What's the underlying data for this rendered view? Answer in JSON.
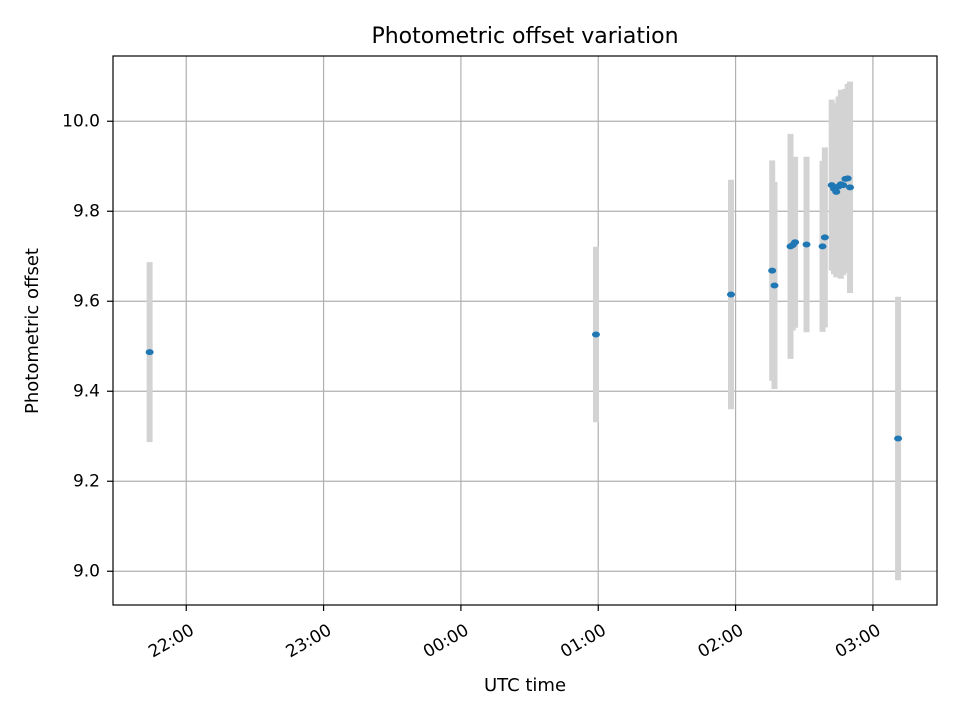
{
  "chart_data": {
    "type": "scatter",
    "title": "Photometric offset variation",
    "xlabel": "UTC time",
    "ylabel": "Photometric offset",
    "x_tick_labels": [
      "22:00",
      "23:00",
      "00:00",
      "01:00",
      "02:00",
      "03:00"
    ],
    "y_tick_labels": [
      "9.0",
      "9.2",
      "9.4",
      "9.6",
      "9.8",
      "10.0"
    ],
    "x_ticks": [
      "22:00",
      "23:00",
      "00:00",
      "01:00",
      "02:00",
      "03:00"
    ],
    "y_ticks": [
      9.0,
      9.2,
      9.4,
      9.6,
      9.8,
      10.0
    ],
    "xlim": [
      "21:28",
      "03:28"
    ],
    "ylim": [
      8.925,
      10.145
    ],
    "grid": true,
    "colors": {
      "points": "#1f77b4",
      "errorbars": "#d3d3d3",
      "grid": "#b0b0b0"
    },
    "points": [
      {
        "time": "21:44",
        "y": 9.487,
        "yerr": 0.2
      },
      {
        "time": "00:59",
        "y": 9.526,
        "yerr": 0.195
      },
      {
        "time": "01:58",
        "y": 9.615,
        "yerr": 0.255
      },
      {
        "time": "02:16",
        "y": 9.668,
        "yerr": 0.245
      },
      {
        "time": "02:17",
        "y": 9.635,
        "yerr": 0.23
      },
      {
        "time": "02:24",
        "y": 9.722,
        "yerr": 0.25
      },
      {
        "time": "02:25",
        "y": 9.725,
        "yerr": 0.19
      },
      {
        "time": "02:26",
        "y": 9.731,
        "yerr": 0.19
      },
      {
        "time": "02:31",
        "y": 9.726,
        "yerr": 0.195
      },
      {
        "time": "02:38",
        "y": 9.722,
        "yerr": 0.19
      },
      {
        "time": "02:39",
        "y": 9.742,
        "yerr": 0.2
      },
      {
        "time": "02:42",
        "y": 9.858,
        "yerr": 0.19
      },
      {
        "time": "02:43",
        "y": 9.85,
        "yerr": 0.19
      },
      {
        "time": "02:44",
        "y": 9.843,
        "yerr": 0.19
      },
      {
        "time": "02:45",
        "y": 9.855,
        "yerr": 0.2
      },
      {
        "time": "02:46",
        "y": 9.86,
        "yerr": 0.21
      },
      {
        "time": "02:47",
        "y": 9.858,
        "yerr": 0.2
      },
      {
        "time": "02:48",
        "y": 9.872,
        "yerr": 0.2
      },
      {
        "time": "02:49",
        "y": 9.873,
        "yerr": 0.21
      },
      {
        "time": "02:50",
        "y": 9.853,
        "yerr": 0.235
      },
      {
        "time": "03:11",
        "y": 9.295,
        "yerr": 0.315
      }
    ]
  }
}
